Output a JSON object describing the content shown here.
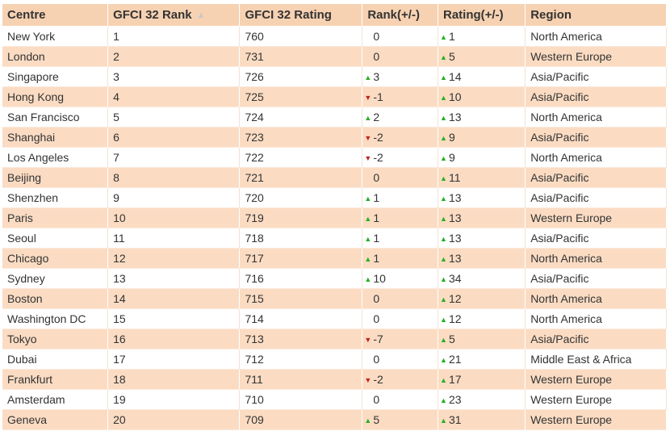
{
  "table": {
    "headers": [
      "Centre",
      "GFCI 32 Rank",
      "GFCI 32 Rating",
      "Rank(+/-)",
      "Rating(+/-)",
      "Region"
    ],
    "sorted_column": "GFCI 32 Rank",
    "sort_direction": "ascending",
    "sort_icon": "sort-ascending-icon",
    "up_color": "#22b022",
    "down_color": "#c0231f",
    "stripe_color": "#fbdcc3",
    "header_color": "#f7d2b2",
    "rows": [
      {
        "centre": "New York",
        "rank": "1",
        "rating": "760",
        "rank_change": "0",
        "rank_dir": "none",
        "rating_change": "1",
        "rating_dir": "up",
        "region": "North America"
      },
      {
        "centre": "London",
        "rank": "2",
        "rating": "731",
        "rank_change": "0",
        "rank_dir": "none",
        "rating_change": "5",
        "rating_dir": "up",
        "region": "Western Europe"
      },
      {
        "centre": "Singapore",
        "rank": "3",
        "rating": "726",
        "rank_change": "3",
        "rank_dir": "up",
        "rating_change": "14",
        "rating_dir": "up",
        "region": "Asia/Pacific"
      },
      {
        "centre": "Hong Kong",
        "rank": "4",
        "rating": "725",
        "rank_change": "-1",
        "rank_dir": "down",
        "rating_change": "10",
        "rating_dir": "up",
        "region": "Asia/Pacific"
      },
      {
        "centre": "San Francisco",
        "rank": "5",
        "rating": "724",
        "rank_change": "2",
        "rank_dir": "up",
        "rating_change": "13",
        "rating_dir": "up",
        "region": "North America"
      },
      {
        "centre": "Shanghai",
        "rank": "6",
        "rating": "723",
        "rank_change": "-2",
        "rank_dir": "down",
        "rating_change": "9",
        "rating_dir": "up",
        "region": "Asia/Pacific"
      },
      {
        "centre": "Los Angeles",
        "rank": "7",
        "rating": "722",
        "rank_change": "-2",
        "rank_dir": "down",
        "rating_change": "9",
        "rating_dir": "up",
        "region": "North America"
      },
      {
        "centre": "Beijing",
        "rank": "8",
        "rating": "721",
        "rank_change": "0",
        "rank_dir": "none",
        "rating_change": "11",
        "rating_dir": "up",
        "region": "Asia/Pacific"
      },
      {
        "centre": "Shenzhen",
        "rank": "9",
        "rating": "720",
        "rank_change": "1",
        "rank_dir": "up",
        "rating_change": "13",
        "rating_dir": "up",
        "region": "Asia/Pacific"
      },
      {
        "centre": "Paris",
        "rank": "10",
        "rating": "719",
        "rank_change": "1",
        "rank_dir": "up",
        "rating_change": "13",
        "rating_dir": "up",
        "region": "Western Europe"
      },
      {
        "centre": "Seoul",
        "rank": "11",
        "rating": "718",
        "rank_change": "1",
        "rank_dir": "up",
        "rating_change": "13",
        "rating_dir": "up",
        "region": "Asia/Pacific"
      },
      {
        "centre": "Chicago",
        "rank": "12",
        "rating": "717",
        "rank_change": "1",
        "rank_dir": "up",
        "rating_change": "13",
        "rating_dir": "up",
        "region": "North America"
      },
      {
        "centre": "Sydney",
        "rank": "13",
        "rating": "716",
        "rank_change": "10",
        "rank_dir": "up",
        "rating_change": "34",
        "rating_dir": "up",
        "region": "Asia/Pacific"
      },
      {
        "centre": "Boston",
        "rank": "14",
        "rating": "715",
        "rank_change": "0",
        "rank_dir": "none",
        "rating_change": "12",
        "rating_dir": "up",
        "region": "North America"
      },
      {
        "centre": "Washington DC",
        "rank": "15",
        "rating": "714",
        "rank_change": "0",
        "rank_dir": "none",
        "rating_change": "12",
        "rating_dir": "up",
        "region": "North America"
      },
      {
        "centre": "Tokyo",
        "rank": "16",
        "rating": "713",
        "rank_change": "-7",
        "rank_dir": "down",
        "rating_change": "5",
        "rating_dir": "up",
        "region": "Asia/Pacific"
      },
      {
        "centre": "Dubai",
        "rank": "17",
        "rating": "712",
        "rank_change": "0",
        "rank_dir": "none",
        "rating_change": "21",
        "rating_dir": "up",
        "region": "Middle East & Africa"
      },
      {
        "centre": "Frankfurt",
        "rank": "18",
        "rating": "711",
        "rank_change": "-2",
        "rank_dir": "down",
        "rating_change": "17",
        "rating_dir": "up",
        "region": "Western Europe"
      },
      {
        "centre": "Amsterdam",
        "rank": "19",
        "rating": "710",
        "rank_change": "0",
        "rank_dir": "none",
        "rating_change": "23",
        "rating_dir": "up",
        "region": "Western Europe"
      },
      {
        "centre": "Geneva",
        "rank": "20",
        "rating": "709",
        "rank_change": "5",
        "rank_dir": "up",
        "rating_change": "31",
        "rating_dir": "up",
        "region": "Western Europe"
      }
    ]
  }
}
